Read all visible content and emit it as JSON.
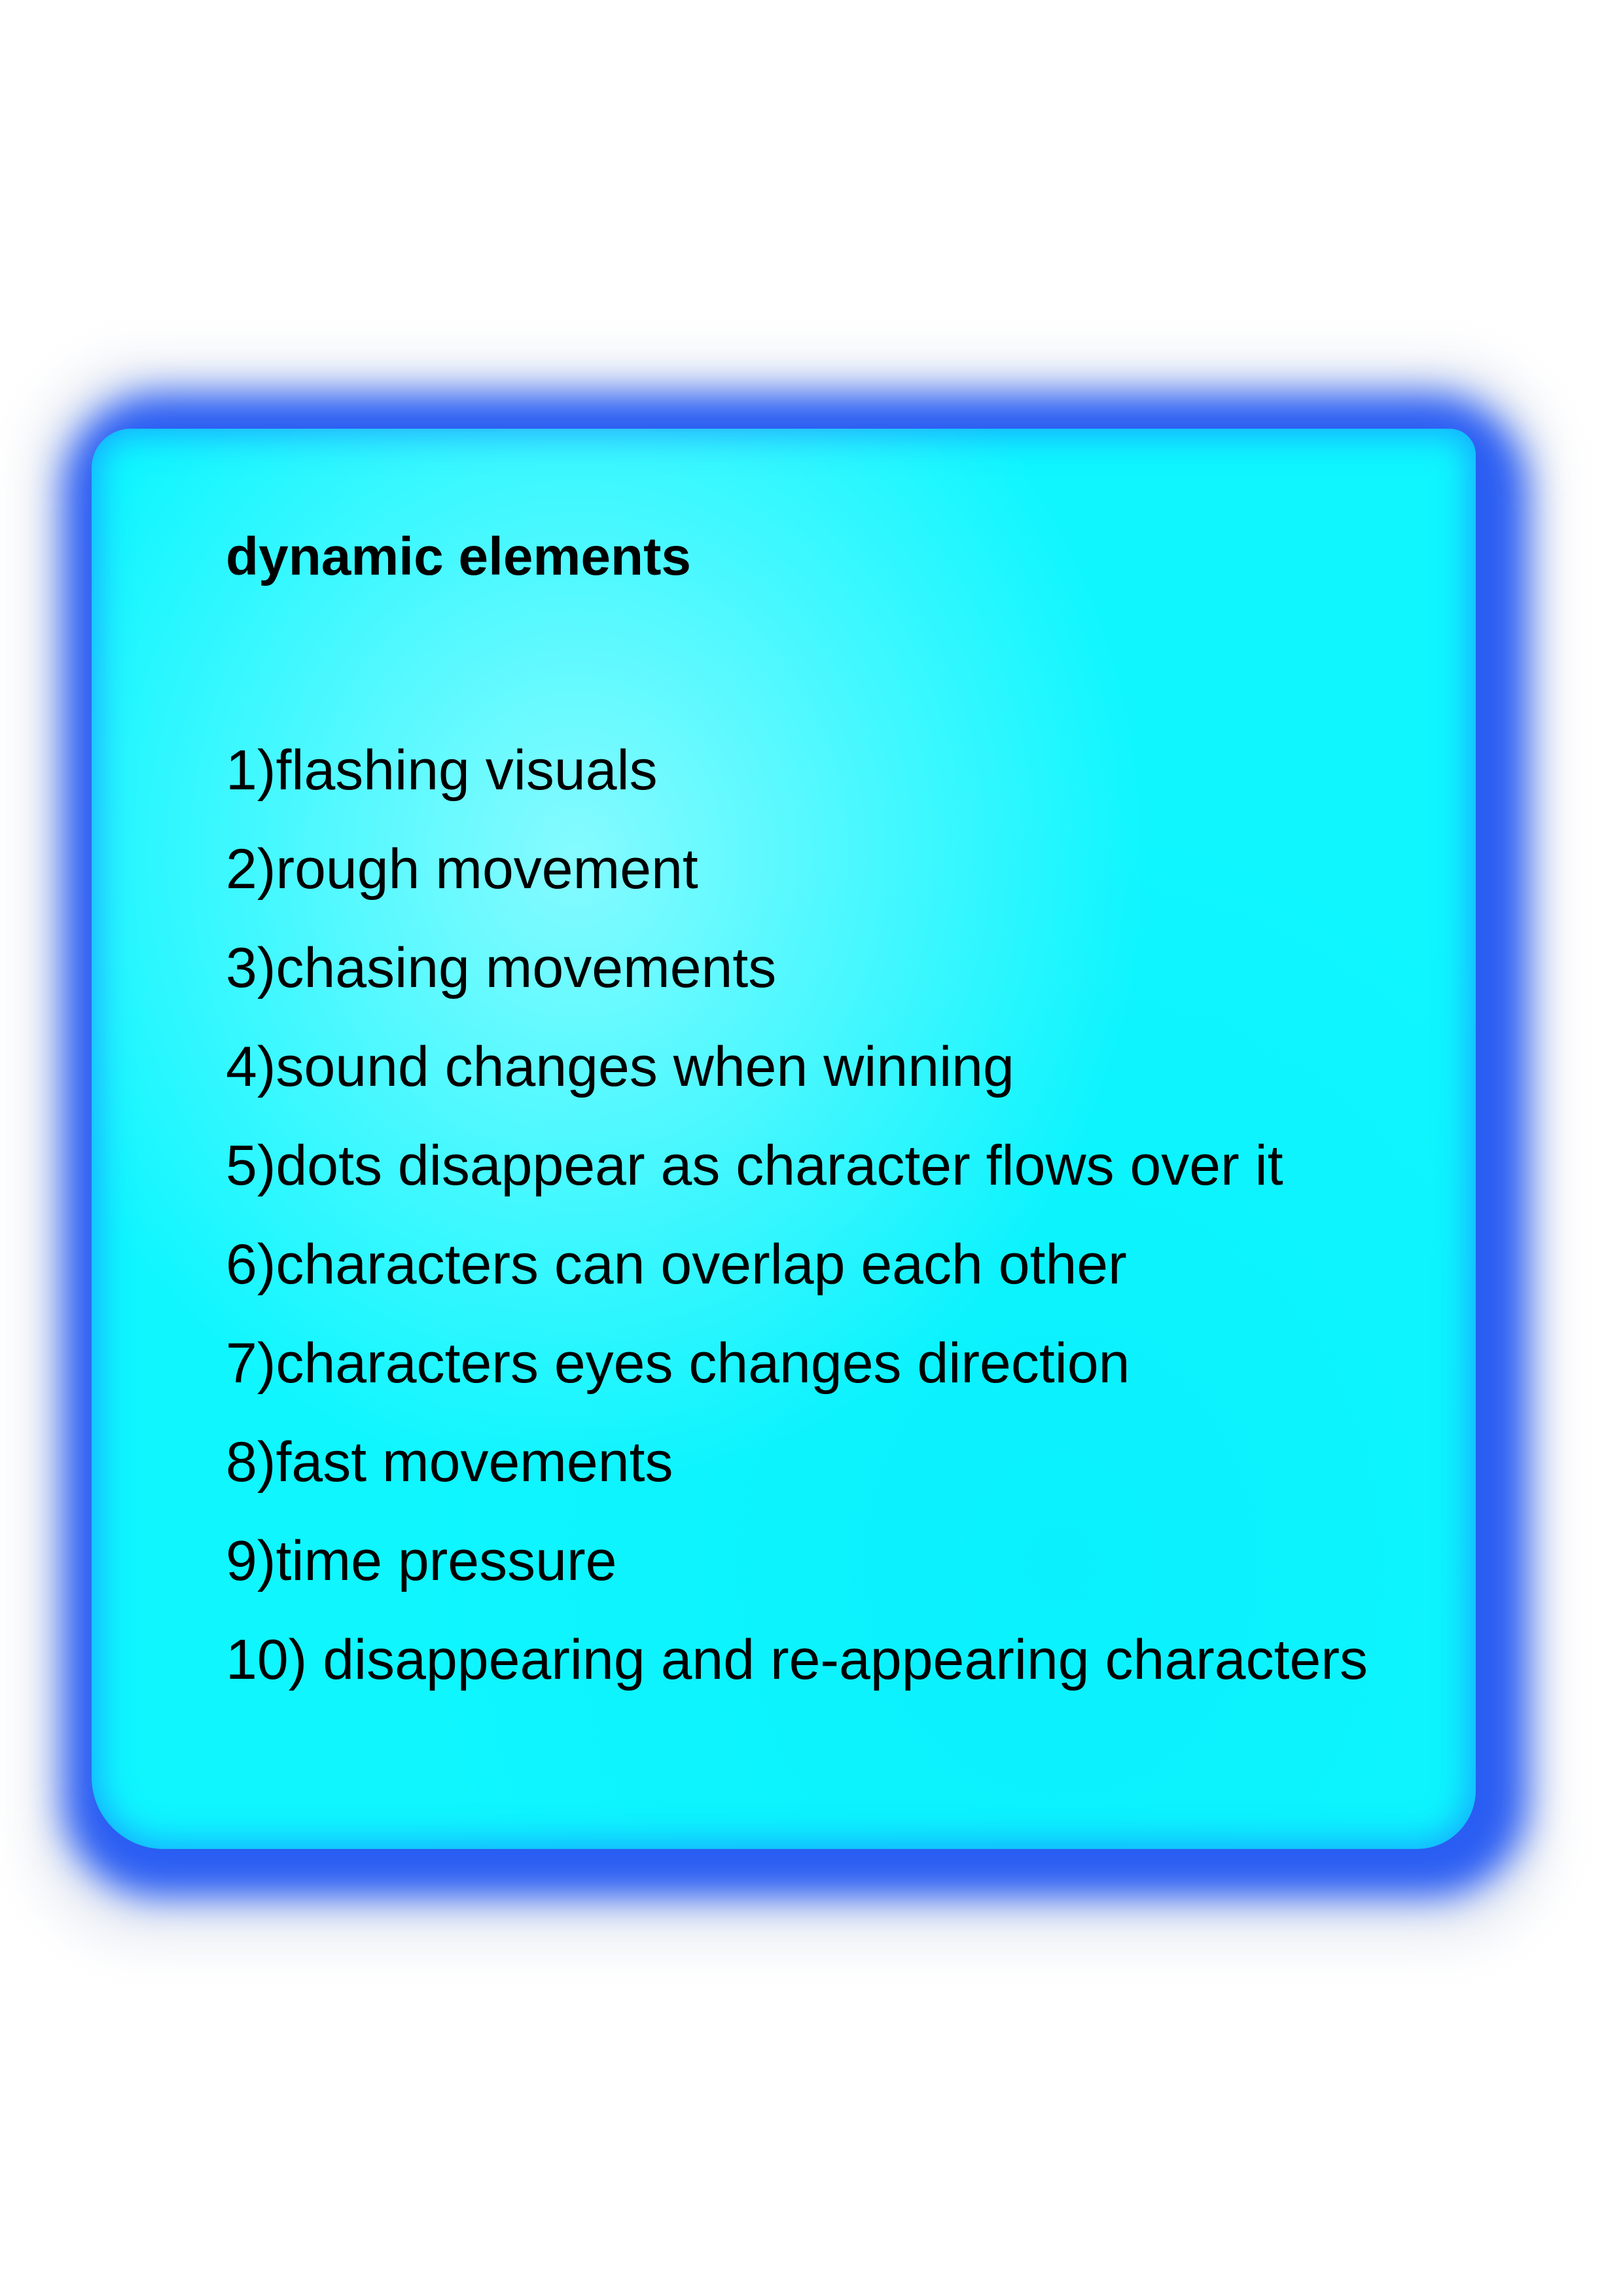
{
  "card": {
    "heading": "dynamic elements",
    "items": [
      "1)flashing visuals",
      "2)rough movement",
      "3)chasing movements",
      "4)sound changes when winning",
      "5)dots disappear as character flows over it",
      "6)characters can overlap each other",
      "7)characters eyes changes direction",
      "8)fast movements",
      "9)time pressure",
      "10) disappearing and re-appearing characters"
    ]
  },
  "colors": {
    "card_fill": "#0ff6ff",
    "card_glow": "#2a5df2",
    "text": "#000000",
    "page_background": "#ffffff"
  }
}
